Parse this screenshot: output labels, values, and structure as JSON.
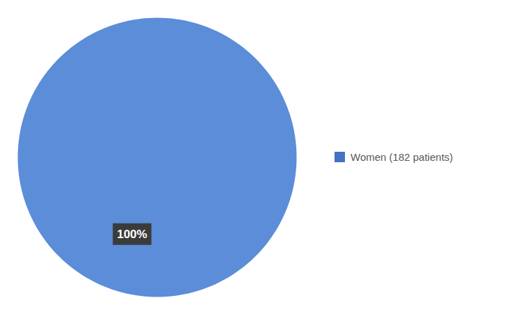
{
  "chart_data": {
    "type": "pie",
    "categories": [
      "Women (182 patients)"
    ],
    "values": [
      100
    ],
    "value_labels": [
      "100%"
    ],
    "data_labels": true,
    "colors": [
      "#5B8DD9"
    ],
    "color": "#4472C4",
    "legend": "right"
  }
}
